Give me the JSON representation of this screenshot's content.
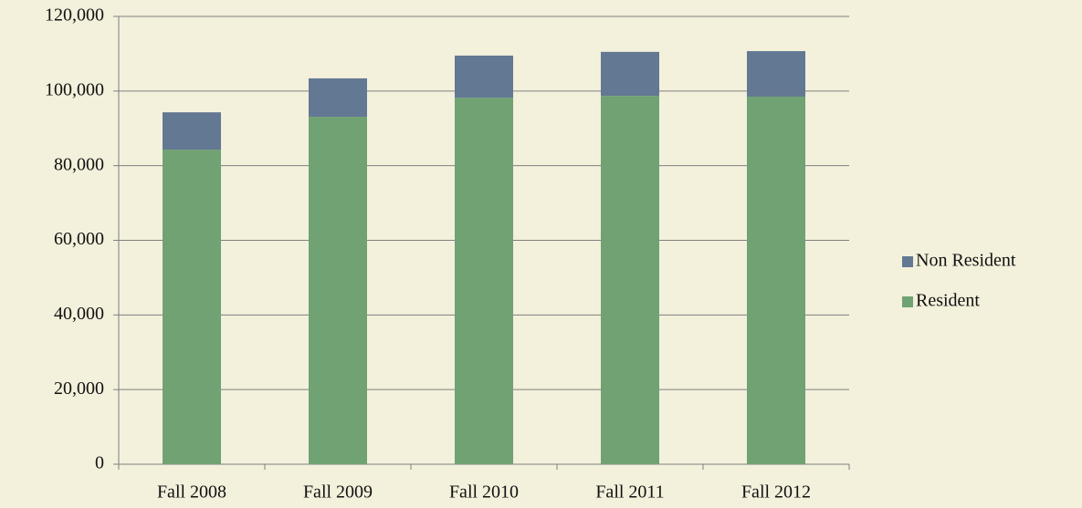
{
  "chart_data": {
    "type": "stacked_bar",
    "categories": [
      "Fall 2008",
      "Fall 2009",
      "Fall 2010",
      "Fall 2011",
      "Fall 2012"
    ],
    "series": [
      {
        "name": "Resident",
        "color": "#70a273",
        "values": [
          84300,
          93100,
          98200,
          98700,
          98500
        ]
      },
      {
        "name": "Non Resident",
        "color": "#637892",
        "values": [
          10000,
          10300,
          11300,
          11800,
          12200
        ]
      }
    ],
    "ylim": [
      0,
      120000
    ],
    "yticks": [
      0,
      {
        "value": 20000,
        "label": "20,000"
      },
      {
        "value": 40000,
        "label": "40,000"
      },
      {
        "value": 60000,
        "label": "60,000"
      },
      {
        "value": 80000,
        "label": "80,000"
      },
      {
        "value": 100000,
        "label": "100,000"
      },
      {
        "value": 120000,
        "label": "120,000"
      }
    ],
    "grid": true,
    "legend": "right"
  }
}
